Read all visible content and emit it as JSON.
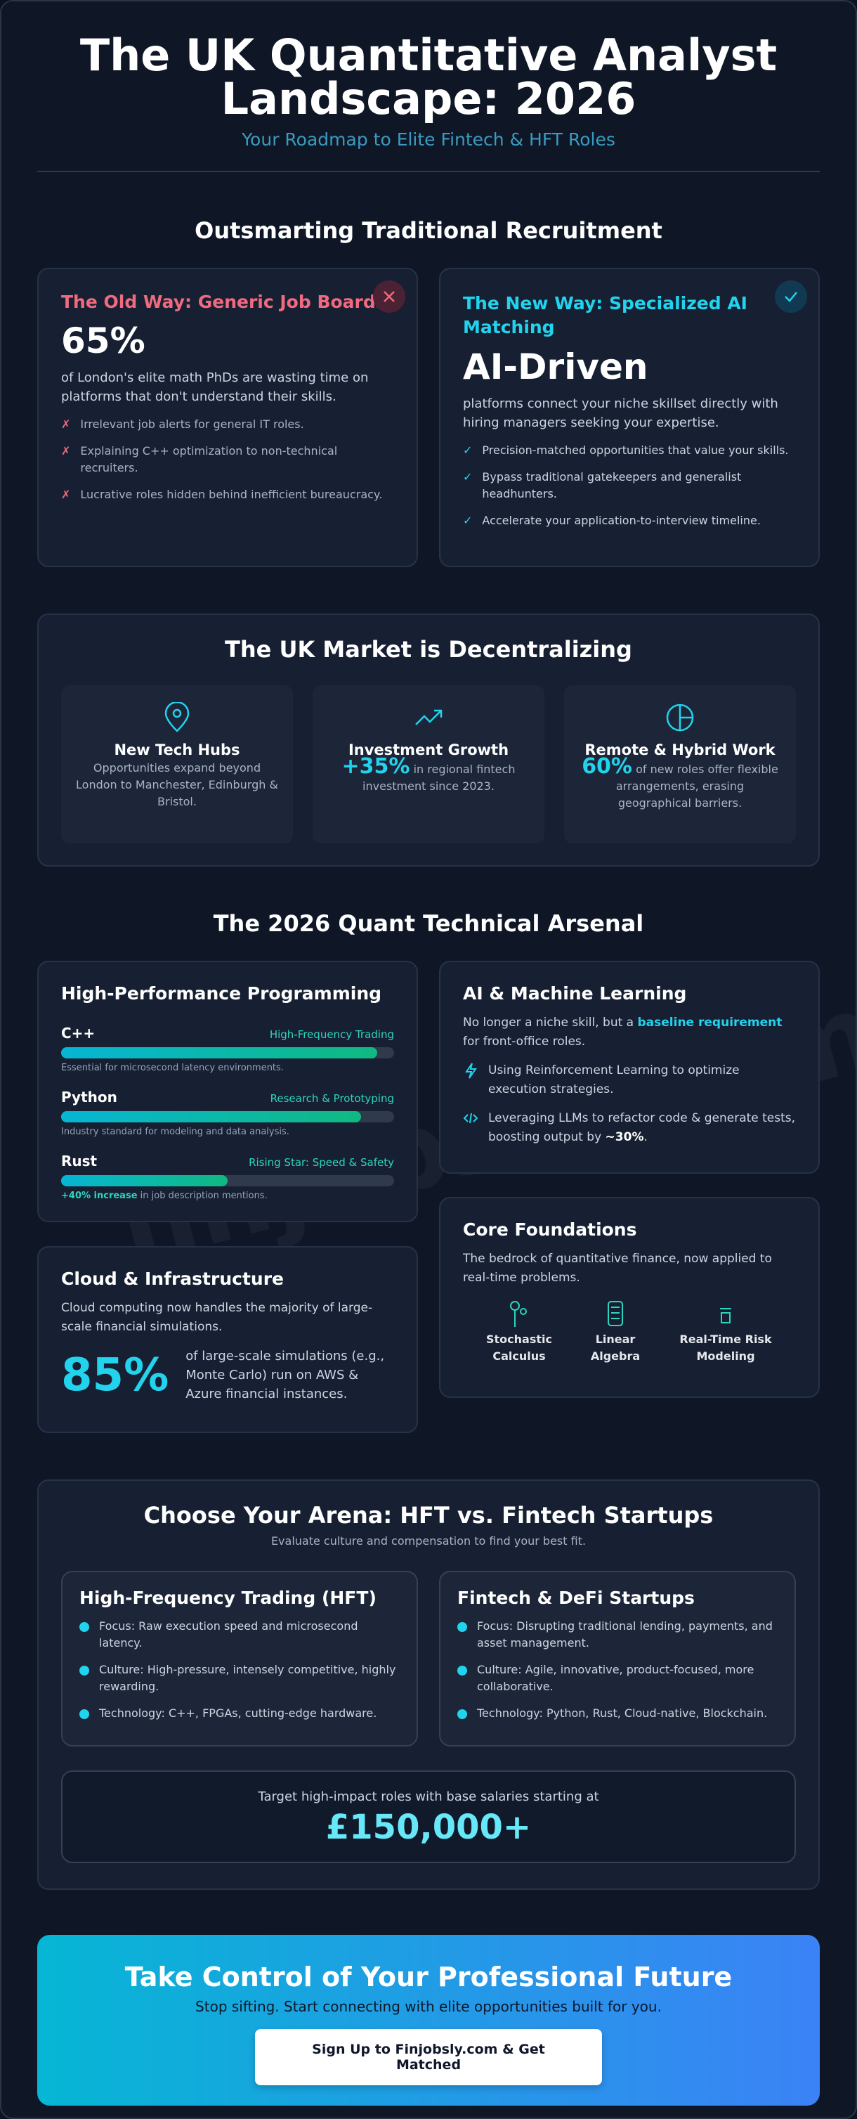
{
  "header": {
    "title": "The UK Quantitative Analyst Landscape: 2026",
    "subtitle": "Your Roadmap to Elite Fintech & HFT Roles"
  },
  "watermark": "finjobsly.com",
  "recruitment": {
    "heading": "Outsmarting Traditional Recruitment",
    "old": {
      "title": "The Old Way: Generic Job Boards",
      "stat": "65%",
      "text": "of London's elite math PhDs are wasting time on platforms that don't understand their skills.",
      "items": [
        "Irrelevant job alerts for general IT roles.",
        "Explaining C++ optimization to non-technical recruiters.",
        "Lucrative roles hidden behind inefficient bureaucracy."
      ]
    },
    "new": {
      "title": "The New Way: Specialized AI Matching",
      "stat": "AI-Driven",
      "text": "platforms connect your niche skillset directly with hiring managers seeking your expertise.",
      "items": [
        "Precision-matched opportunities that value your skills.",
        "Bypass traditional gatekeepers and generalist headhunters.",
        "Accelerate your application-to-interview timeline."
      ]
    }
  },
  "market": {
    "heading": "The UK Market is Decentralizing",
    "cards": [
      {
        "title": "New Tech Hubs",
        "text": "Opportunities expand beyond London to Manchester, Edinburgh & Bristol."
      },
      {
        "title": "Investment Growth",
        "stat": "+35%",
        "text": "in regional fintech investment since 2023."
      },
      {
        "title": "Remote & Hybrid Work",
        "stat": "60%",
        "text": "of new roles offer flexible arrangements, erasing geographical barriers."
      }
    ]
  },
  "arsenal": {
    "heading": "The 2026 Quant Technical Arsenal",
    "programming": {
      "title": "High-Performance Programming",
      "skills": [
        {
          "name": "C++",
          "tag": "High-Frequency Trading",
          "level": 95,
          "note": "Essential for microsecond latency environments."
        },
        {
          "name": "Python",
          "tag": "Research & Prototyping",
          "level": 90,
          "note": "Industry standard for modeling and data analysis."
        },
        {
          "name": "Rust",
          "tag": "Rising Star: Speed & Safety",
          "level": 50,
          "note_bold": "+40% increase",
          "note": "in job description mentions."
        }
      ]
    },
    "cloud": {
      "title": "Cloud & Infrastructure",
      "text": "Cloud computing now handles the majority of large-scale financial simulations.",
      "stat": "85%",
      "stat_text": "of large-scale simulations (e.g., Monte Carlo) run on AWS & Azure financial instances."
    },
    "ai": {
      "title": "AI & Machine Learning",
      "text_start": "No longer a niche skill, but a",
      "text_highlight": "baseline requirement",
      "text_end": "for front-office roles.",
      "items": [
        {
          "text": "Using Reinforcement Learning to optimize execution strategies."
        },
        {
          "text": "Leveraging LLMs to refactor code & generate tests, boosting output by",
          "bold": "~30%",
          "end": "."
        }
      ]
    },
    "core": {
      "title": "Core Foundations",
      "text": "The bedrock of quantitative finance, now applied to real-time problems.",
      "items": [
        "Stochastic Calculus",
        "Linear Algebra",
        "Real-Time Risk Modeling"
      ]
    }
  },
  "arena": {
    "heading": "Choose Your Arena: HFT vs. Fintech Startups",
    "subtitle": "Evaluate culture and compensation to find your best fit.",
    "cards": [
      {
        "title": "High-Frequency Trading (HFT)",
        "items": [
          "Focus: Raw execution speed and microsecond latency.",
          "Culture: High-pressure, intensely competitive, highly rewarding.",
          "Technology: C++, FPGAs, cutting-edge hardware."
        ]
      },
      {
        "title": "Fintech & DeFi Startups",
        "items": [
          "Focus: Disrupting traditional lending, payments, and asset management.",
          "Culture: Agile, innovative, product-focused, more collaborative.",
          "Technology: Python, Rust, Cloud-native, Blockchain."
        ]
      }
    ],
    "salary_text": "Target high-impact roles with base salaries starting at",
    "salary": "£150,000+"
  },
  "cta": {
    "title": "Take Control of Your Professional Future",
    "text": "Stop sifting. Start connecting with elite opportunities built for you.",
    "button": "Sign Up to Finjobsly.com & Get Matched"
  }
}
